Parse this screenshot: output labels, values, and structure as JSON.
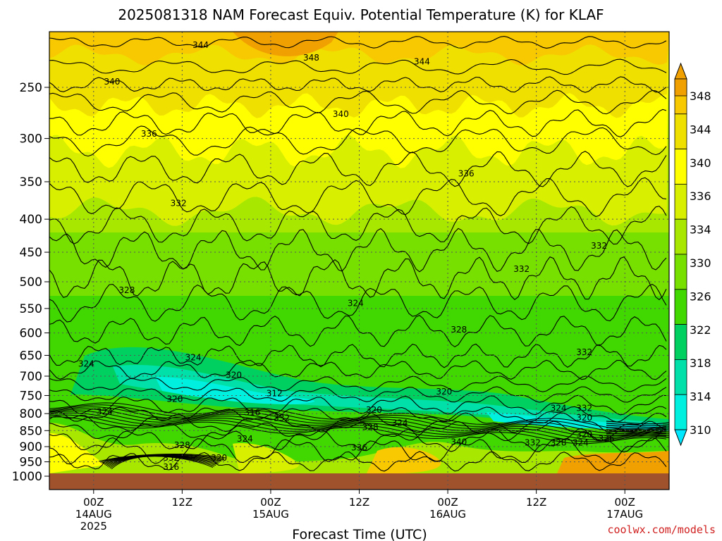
{
  "chart_data": {
    "type": "heatmap",
    "title": "2025081318 NAM Forecast Equiv. Potential Temperature (K) for KLAF",
    "xlabel": "Forecast Time (UTC)",
    "ylabel": "",
    "y_axis": {
      "scale": "log-pressure",
      "reversed": true,
      "ticks": [
        250,
        300,
        350,
        400,
        450,
        500,
        550,
        600,
        650,
        700,
        750,
        800,
        850,
        900,
        950,
        1000
      ],
      "ylim": [
        1000,
        200
      ]
    },
    "x_axis": {
      "ticks": [
        {
          "hour": 6,
          "label": "00Z",
          "date": "14AUG",
          "year": "2025"
        },
        {
          "hour": 18,
          "label": "12Z",
          "date": "",
          "year": ""
        },
        {
          "hour": 30,
          "label": "00Z",
          "date": "15AUG",
          "year": ""
        },
        {
          "hour": 42,
          "label": "12Z",
          "date": "",
          "year": ""
        },
        {
          "hour": 54,
          "label": "00Z",
          "date": "16AUG",
          "year": ""
        },
        {
          "hour": 66,
          "label": "12Z",
          "date": "",
          "year": ""
        },
        {
          "hour": 78,
          "label": "00Z",
          "date": "17AUG",
          "year": ""
        }
      ],
      "xlim": [
        0,
        84
      ]
    },
    "grid": true,
    "colorbar": {
      "labels": [
        348,
        344,
        340,
        336,
        334,
        330,
        326,
        322,
        318,
        314,
        310
      ],
      "colors": [
        "#f0a000",
        "#f8c800",
        "#f0e000",
        "#ffff00",
        "#d8f000",
        "#a8e800",
        "#78e000",
        "#40d800",
        "#00d060",
        "#00e0a8",
        "#00f0e0",
        "#00e8ff"
      ],
      "placement": "right"
    },
    "contour_labels": [
      {
        "text": "344",
        "hour": 20.5,
        "pressure": 215
      },
      {
        "text": "348",
        "hour": 35.5,
        "pressure": 225
      },
      {
        "text": "344",
        "hour": 50.5,
        "pressure": 228
      },
      {
        "text": "340",
        "hour": 8.5,
        "pressure": 245
      },
      {
        "text": "340",
        "hour": 39.5,
        "pressure": 275
      },
      {
        "text": "336",
        "hour": 13.5,
        "pressure": 295
      },
      {
        "text": "336",
        "hour": 56.5,
        "pressure": 340
      },
      {
        "text": "332",
        "hour": 17.5,
        "pressure": 378
      },
      {
        "text": "332",
        "hour": 74.5,
        "pressure": 440
      },
      {
        "text": "332",
        "hour": 64,
        "pressure": 478
      },
      {
        "text": "328",
        "hour": 10.5,
        "pressure": 515
      },
      {
        "text": "324",
        "hour": 41.5,
        "pressure": 540
      },
      {
        "text": "328",
        "hour": 55.5,
        "pressure": 593
      },
      {
        "text": "332",
        "hour": 72.5,
        "pressure": 643
      },
      {
        "text": "324",
        "hour": 5,
        "pressure": 670
      },
      {
        "text": "324",
        "hour": 19.5,
        "pressure": 655
      },
      {
        "text": "320",
        "hour": 25,
        "pressure": 697
      },
      {
        "text": "312",
        "hour": 30.5,
        "pressure": 744
      },
      {
        "text": "320",
        "hour": 17,
        "pressure": 760
      },
      {
        "text": "320",
        "hour": 53.5,
        "pressure": 740
      },
      {
        "text": "316",
        "hour": 27.5,
        "pressure": 797
      },
      {
        "text": "320",
        "hour": 44,
        "pressure": 790
      },
      {
        "text": "332",
        "hour": 31.5,
        "pressure": 813
      },
      {
        "text": "324",
        "hour": 7.5,
        "pressure": 795
      },
      {
        "text": "328",
        "hour": 43.5,
        "pressure": 840
      },
      {
        "text": "324",
        "hour": 47.5,
        "pressure": 827
      },
      {
        "text": "324",
        "hour": 69,
        "pressure": 785
      },
      {
        "text": "332",
        "hour": 72.5,
        "pressure": 785
      },
      {
        "text": "320",
        "hour": 72.5,
        "pressure": 812
      },
      {
        "text": "320",
        "hour": 72.5,
        "pressure": 862
      },
      {
        "text": "328",
        "hour": 18,
        "pressure": 895
      },
      {
        "text": "324",
        "hour": 26.5,
        "pressure": 875
      },
      {
        "text": "336",
        "hour": 42,
        "pressure": 903
      },
      {
        "text": "340",
        "hour": 55.5,
        "pressure": 885
      },
      {
        "text": "332",
        "hour": 65.5,
        "pressure": 888
      },
      {
        "text": "328",
        "hour": 69,
        "pressure": 888
      },
      {
        "text": "324",
        "hour": 72,
        "pressure": 888
      },
      {
        "text": "336",
        "hour": 75.5,
        "pressure": 875
      },
      {
        "text": "332",
        "hour": 16.5,
        "pressure": 937
      },
      {
        "text": "320",
        "hour": 23,
        "pressure": 937
      },
      {
        "text": "316",
        "hour": 16.5,
        "pressure": 968
      }
    ]
  },
  "credit": "coolwx.com/models"
}
